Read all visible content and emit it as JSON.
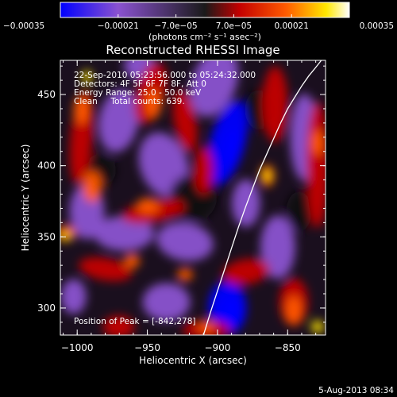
{
  "chart_data": {
    "type": "heatmap",
    "title": "Reconstructed RHESSI Image",
    "xlabel": "Heliocentric X (arcsec)",
    "ylabel": "Heliocentric Y (arcsec)",
    "xlim": [
      -1012,
      -823
    ],
    "ylim": [
      281,
      474
    ],
    "x_ticks": [
      -1000,
      -950,
      -900,
      -850
    ],
    "x_tick_labels": [
      "−1000",
      "−950",
      "−900",
      "−850"
    ],
    "y_ticks": [
      300,
      350,
      400,
      450
    ],
    "y_tick_labels": [
      "300",
      "350",
      "400",
      "450"
    ],
    "colorbar": {
      "range": [
        -0.00035,
        0.00035
      ],
      "ticks": [
        -0.00035,
        -0.00021,
        -7e-05,
        7e-05,
        0.00021,
        0.00035
      ],
      "tick_labels": [
        "−0.00035",
        "−0.00021",
        "−7.0e−05",
        "7.0e−05",
        "0.00021",
        "0.00035"
      ],
      "units_label": "(photons cm⁻² s⁻¹ asec⁻²)",
      "colors": [
        "#0000ff",
        "#8a52d0",
        "#1a1a1a",
        "#c40000",
        "#ff5a00",
        "#ffe800",
        "#ffffff"
      ]
    },
    "annotations": [
      "22-Sep-2010 05:23:56.000 to 05:24:32.000",
      "Detectors: 4F 5F 6F 7F 8F, Att 0",
      "Energy Range: 25.0 - 50.0 keV",
      "Clean     Total counts: 639.",
      "Position of Peak = [-842,278]"
    ],
    "limb_curve": {
      "x": [
        -910,
        -905,
        -900,
        -895,
        -890,
        -885,
        -880,
        -875,
        -870,
        -865,
        -860,
        -855,
        -850,
        -845,
        -840,
        -835,
        -830,
        -826
      ],
      "y": [
        281,
        297,
        312,
        327,
        342,
        357,
        371,
        384,
        397,
        408,
        419,
        430,
        440,
        448,
        456,
        463,
        469,
        474
      ],
      "color": "#ffffff"
    },
    "grid": false,
    "peak_position": [
      -842,
      278
    ]
  },
  "footer": {
    "date": "5-Aug-2013 08:34"
  }
}
